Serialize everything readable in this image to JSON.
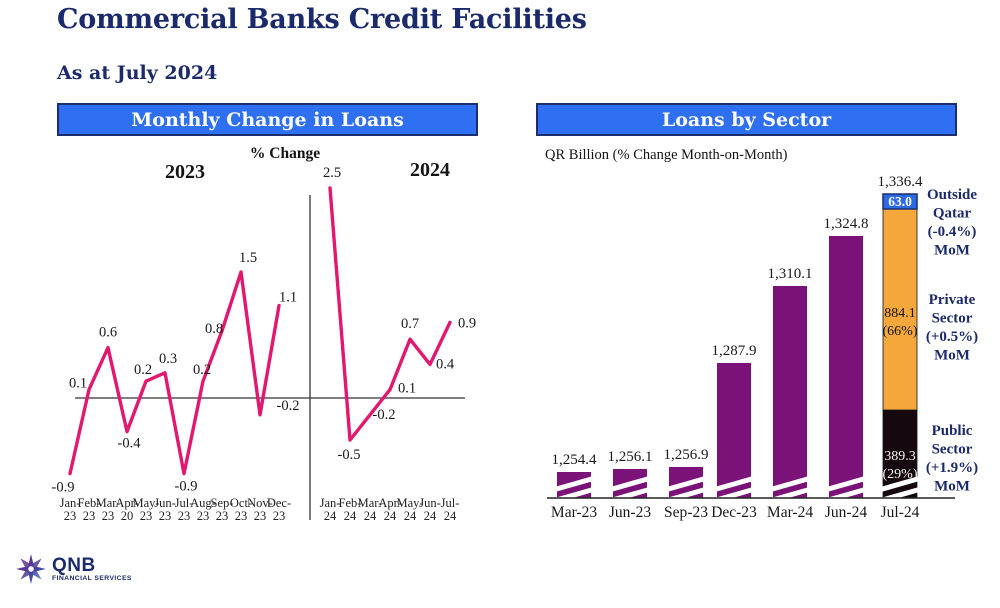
{
  "page": {
    "title": "Commercial Banks Credit Facilities",
    "date_label": "As at July 2024"
  },
  "logo": {
    "name": "QNB",
    "tagline": "FINANCIAL SERVICES"
  },
  "colors": {
    "navy": "#1b2a6b",
    "header_blue": "#2f6ff2",
    "line_pink": "#e2186f",
    "bar_purple": "#7b1278",
    "private_orange": "#f4a83c",
    "public_black": "#15090f",
    "outside_blue": "#2d6be5"
  },
  "chart_data": [
    {
      "type": "line",
      "title": "Monthly Change in Loans",
      "ylabel": "% Change",
      "line_color": "#e2186f",
      "ylim": [
        -1.0,
        2.6
      ],
      "grid": false,
      "series": [
        {
          "name": "2023",
          "x": [
            "Jan-23",
            "Feb-23",
            "Mar-23",
            "Apr-20",
            "May-23",
            "Jun-23",
            "Jul-23",
            "Aug-23",
            "Sep-23",
            "Oct-23",
            "Nov-23",
            "Dec-23"
          ],
          "values": [
            -0.9,
            0.1,
            0.6,
            -0.4,
            0.2,
            0.3,
            -0.9,
            0.2,
            0.8,
            1.5,
            -0.2,
            1.1
          ],
          "label_offsets": [
            [
              -7,
              18
            ],
            [
              -11,
              -2
            ],
            [
              0,
              -11
            ],
            [
              2,
              16
            ],
            [
              -3,
              -7
            ],
            [
              3,
              -10
            ],
            [
              2,
              17
            ],
            [
              -1,
              -7
            ],
            [
              -8,
              2
            ],
            [
              7,
              -10
            ],
            [
              28,
              -5
            ],
            [
              9,
              -4
            ]
          ]
        },
        {
          "name": "2024",
          "x": [
            "Jan-24",
            "Feb-24",
            "Mar-24",
            "Apr-24",
            "May-24",
            "Jun-24",
            "Jul-24"
          ],
          "values": [
            2.5,
            -0.5,
            -0.2,
            0.1,
            0.7,
            0.4,
            0.9
          ],
          "label_offsets": [
            [
              2,
              -11
            ],
            [
              -1,
              19
            ],
            [
              14,
              4
            ],
            [
              17,
              3
            ],
            [
              0,
              -11
            ],
            [
              15,
              4
            ],
            [
              17,
              5
            ]
          ]
        }
      ]
    },
    {
      "type": "bar",
      "title": "Loans by Sector",
      "subtitle": "QR Billion (% Change Month-on-Month)",
      "categories": [
        "Mar-23",
        "Jun-23",
        "Sep-23",
        "Dec-23",
        "Mar-24",
        "Jun-24",
        "Jul-24"
      ],
      "values": [
        1254.4,
        1256.1,
        1256.9,
        1287.9,
        1310.1,
        1324.8,
        1336.4
      ],
      "value_labels": [
        "1,254.4",
        "1,256.1",
        "1,256.9",
        "1,287.9",
        "1,310.1",
        "1,324.8",
        "1,336.4"
      ],
      "bar_color": "#7b1278",
      "axis_break": true,
      "stacked_last": {
        "category": "Jul-24",
        "total_label": "1,336.4",
        "mom_suffix": "MoM",
        "segments": [
          {
            "name": "Public Sector",
            "value": 389.3,
            "value_label": "389.3",
            "pct_label": "(29%)",
            "mom_label": "(+1.9%)",
            "color": "#15090f",
            "text_color": "#f7f3ee"
          },
          {
            "name": "Private Sector",
            "value": 884.1,
            "value_label": "884.1",
            "pct_label": "(66%)",
            "mom_label": "(+0.5%)",
            "color": "#f4a83c",
            "text_color": "#14141f"
          },
          {
            "name": "Outside Qatar",
            "value": 63.0,
            "value_label": "63.0",
            "pct_label": "",
            "mom_label": "(-0.4%)",
            "color": "#2d6be5",
            "text_color": "#ffffff"
          }
        ]
      }
    }
  ]
}
